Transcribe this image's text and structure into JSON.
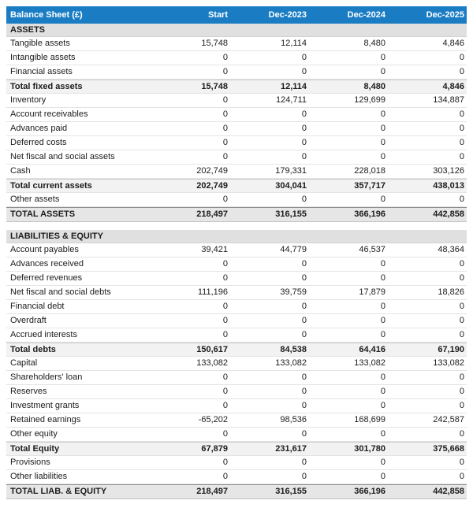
{
  "colors": {
    "header_bg": "#1a7dc4",
    "section_bg": "#e0e0e0",
    "subtotal_bg": "#f2f2f2",
    "grandtotal_bg": "#e6e6e6",
    "header_text": "#ffffff"
  },
  "table": {
    "title": "Balance Sheet (£)",
    "columns": [
      "Start",
      "Dec-2023",
      "Dec-2024",
      "Dec-2025"
    ],
    "rows": [
      {
        "type": "section",
        "label": "ASSETS"
      },
      {
        "type": "data",
        "label": "Tangible assets",
        "values": [
          "15,748",
          "12,114",
          "8,480",
          "4,846"
        ]
      },
      {
        "type": "data",
        "label": "Intangible assets",
        "values": [
          "0",
          "0",
          "0",
          "0"
        ]
      },
      {
        "type": "data",
        "label": "Financial assets",
        "values": [
          "0",
          "0",
          "0",
          "0"
        ]
      },
      {
        "type": "subtotal",
        "label": "Total fixed assets",
        "values": [
          "15,748",
          "12,114",
          "8,480",
          "4,846"
        ]
      },
      {
        "type": "data",
        "label": "Inventory",
        "values": [
          "0",
          "124,711",
          "129,699",
          "134,887"
        ]
      },
      {
        "type": "data",
        "label": "Account receivables",
        "values": [
          "0",
          "0",
          "0",
          "0"
        ]
      },
      {
        "type": "data",
        "label": "Advances paid",
        "values": [
          "0",
          "0",
          "0",
          "0"
        ]
      },
      {
        "type": "data",
        "label": "Deferred costs",
        "values": [
          "0",
          "0",
          "0",
          "0"
        ]
      },
      {
        "type": "data",
        "label": "Net fiscal and social assets",
        "values": [
          "0",
          "0",
          "0",
          "0"
        ]
      },
      {
        "type": "data",
        "label": "Cash",
        "values": [
          "202,749",
          "179,331",
          "228,018",
          "303,126"
        ]
      },
      {
        "type": "subtotal",
        "label": "Total current assets",
        "values": [
          "202,749",
          "304,041",
          "357,717",
          "438,013"
        ]
      },
      {
        "type": "data",
        "label": "Other assets",
        "values": [
          "0",
          "0",
          "0",
          "0"
        ]
      },
      {
        "type": "grandtotal",
        "label": "TOTAL ASSETS",
        "values": [
          "218,497",
          "316,155",
          "366,196",
          "442,858"
        ]
      },
      {
        "type": "gap"
      },
      {
        "type": "section",
        "label": "LIABILITIES & EQUITY"
      },
      {
        "type": "data",
        "label": "Account payables",
        "values": [
          "39,421",
          "44,779",
          "46,537",
          "48,364"
        ]
      },
      {
        "type": "data",
        "label": "Advances received",
        "values": [
          "0",
          "0",
          "0",
          "0"
        ]
      },
      {
        "type": "data",
        "label": "Deferred revenues",
        "values": [
          "0",
          "0",
          "0",
          "0"
        ]
      },
      {
        "type": "data",
        "label": "Net fiscal and social debts",
        "values": [
          "111,196",
          "39,759",
          "17,879",
          "18,826"
        ]
      },
      {
        "type": "data",
        "label": "Financial debt",
        "values": [
          "0",
          "0",
          "0",
          "0"
        ]
      },
      {
        "type": "data",
        "label": "Overdraft",
        "values": [
          "0",
          "0",
          "0",
          "0"
        ]
      },
      {
        "type": "data",
        "label": "Accrued interests",
        "values": [
          "0",
          "0",
          "0",
          "0"
        ]
      },
      {
        "type": "subtotal",
        "label": "Total debts",
        "values": [
          "150,617",
          "84,538",
          "64,416",
          "67,190"
        ]
      },
      {
        "type": "data",
        "label": "Capital",
        "values": [
          "133,082",
          "133,082",
          "133,082",
          "133,082"
        ]
      },
      {
        "type": "data",
        "label": "Shareholders' loan",
        "values": [
          "0",
          "0",
          "0",
          "0"
        ]
      },
      {
        "type": "data",
        "label": "Reserves",
        "values": [
          "0",
          "0",
          "0",
          "0"
        ]
      },
      {
        "type": "data",
        "label": "Investment grants",
        "values": [
          "0",
          "0",
          "0",
          "0"
        ]
      },
      {
        "type": "data",
        "label": "Retained earnings",
        "values": [
          "-65,202",
          "98,536",
          "168,699",
          "242,587"
        ]
      },
      {
        "type": "data",
        "label": "Other equity",
        "values": [
          "0",
          "0",
          "0",
          "0"
        ]
      },
      {
        "type": "subtotal",
        "label": "Total Equity",
        "values": [
          "67,879",
          "231,617",
          "301,780",
          "375,668"
        ]
      },
      {
        "type": "data",
        "label": "Provisions",
        "values": [
          "0",
          "0",
          "0",
          "0"
        ]
      },
      {
        "type": "data",
        "label": "Other liabilities",
        "values": [
          "0",
          "0",
          "0",
          "0"
        ]
      },
      {
        "type": "grandtotal",
        "label": "TOTAL LIAB. & EQUITY",
        "values": [
          "218,497",
          "316,155",
          "366,196",
          "442,858"
        ]
      }
    ]
  }
}
